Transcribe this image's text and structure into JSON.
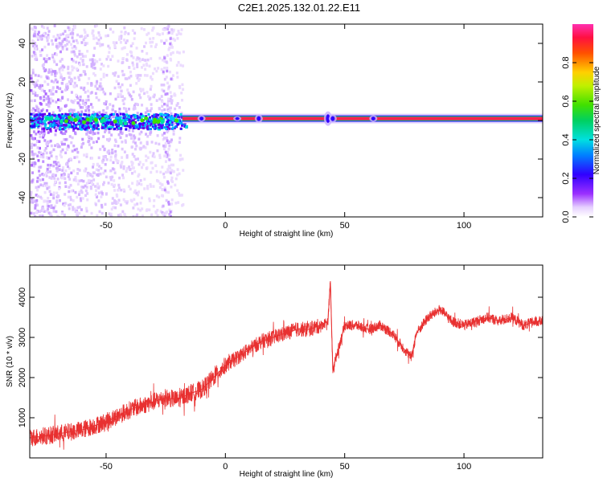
{
  "title": "C2E1.2025.132.01.22.E11",
  "chart_data": [
    {
      "type": "heatmap",
      "xlabel": "Height of straight line (km)",
      "ylabel": "Frequency (Hz)",
      "xlim": [
        -82,
        133
      ],
      "ylim": [
        -50,
        50
      ],
      "xticks": [
        -50,
        0,
        50,
        100
      ],
      "yticks": [
        -40,
        -20,
        0,
        20,
        40
      ],
      "grid": false,
      "description_points": {
        "noise_region_x": [
          -82,
          -18
        ],
        "signal_line_start_x": -18,
        "signal_frequency_hz": 1
      },
      "colorbar": {
        "label": "Normalized spectral amplitude",
        "range": [
          0.0,
          1.0
        ],
        "ticks": [
          0.0,
          0.2,
          0.4,
          0.6,
          0.8
        ]
      }
    },
    {
      "type": "line",
      "xlabel": "Height of straight line (km)",
      "ylabel": "SNR (10 * v/v)",
      "xlim": [
        -82,
        133
      ],
      "ylim": [
        0,
        4800
      ],
      "xticks": [
        -50,
        0,
        50,
        100
      ],
      "yticks": [
        1000,
        2000,
        3000,
        4000
      ],
      "grid": false,
      "color": "#e83030",
      "series": [
        {
          "x": [
            -82,
            -75,
            -70,
            -65,
            -60,
            -55,
            -50,
            -45,
            -40,
            -35,
            -30,
            -25,
            -20,
            -15,
            -10,
            -5,
            0,
            5,
            10,
            15,
            20,
            25,
            30,
            35,
            40,
            43,
            44,
            45,
            50,
            55,
            60,
            65,
            70,
            75,
            78,
            80,
            85,
            90,
            95,
            100,
            105,
            110,
            115,
            120,
            125,
            130,
            133
          ],
          "y": [
            500,
            550,
            600,
            650,
            700,
            800,
            900,
            1050,
            1200,
            1300,
            1400,
            1500,
            1450,
            1600,
            1700,
            2000,
            2300,
            2500,
            2700,
            2900,
            3000,
            3100,
            3200,
            3200,
            3300,
            3400,
            4400,
            2200,
            3300,
            3300,
            3200,
            3300,
            3100,
            2700,
            2500,
            3100,
            3500,
            3700,
            3400,
            3300,
            3400,
            3500,
            3400,
            3500,
            3300,
            3400,
            3400
          ]
        }
      ]
    }
  ]
}
